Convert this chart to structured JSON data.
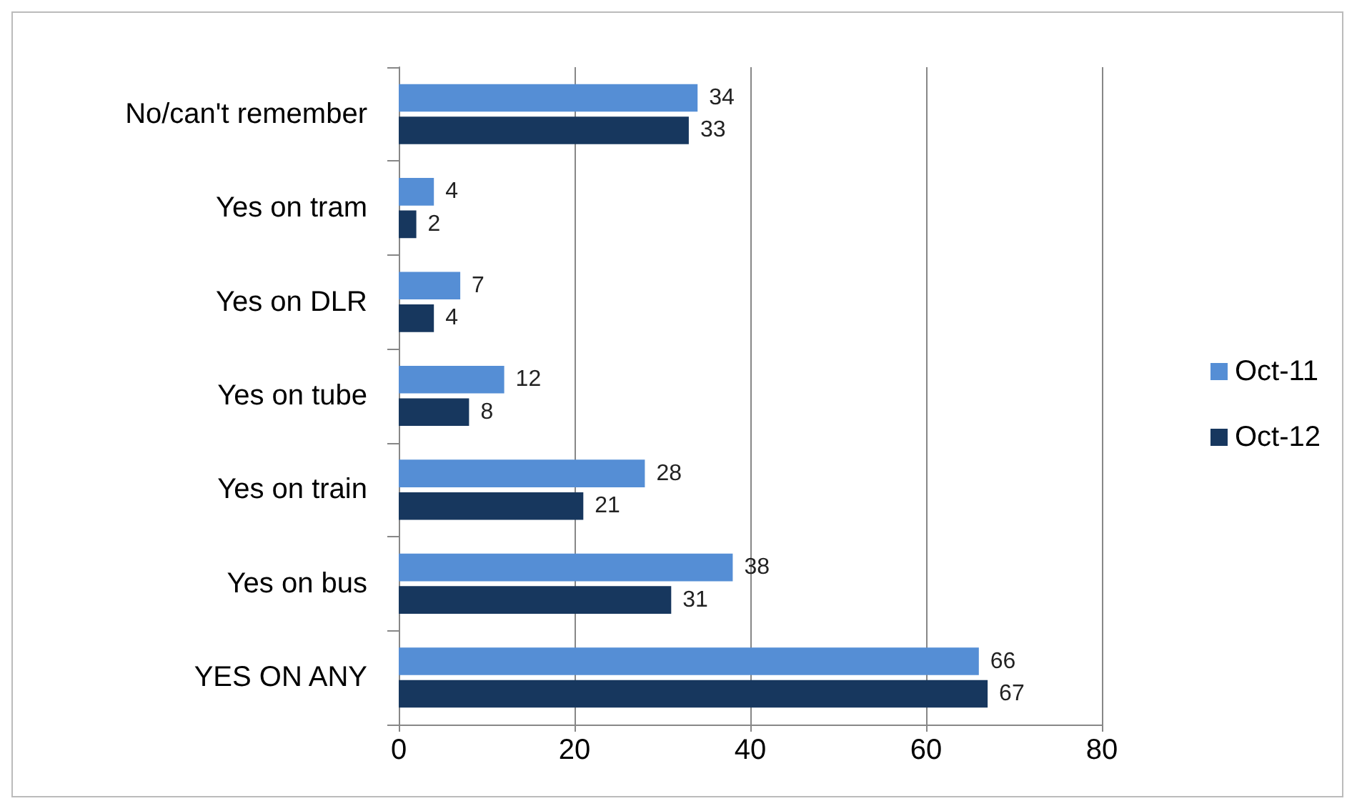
{
  "chart_data": {
    "type": "bar",
    "orientation": "horizontal",
    "categories": [
      "No/can't remember",
      "Yes on tram",
      "Yes on DLR",
      "Yes on tube",
      "Yes on train",
      "Yes on bus",
      "YES ON ANY"
    ],
    "series": [
      {
        "name": "Oct-11",
        "color": "#558ed5",
        "values": [
          34,
          4,
          7,
          12,
          28,
          38,
          66
        ]
      },
      {
        "name": "Oct-12",
        "color": "#17375e",
        "values": [
          33,
          2,
          4,
          8,
          21,
          31,
          67
        ]
      }
    ],
    "xlim": [
      0,
      80
    ],
    "xticks": [
      0,
      20,
      40,
      60,
      80
    ],
    "grid": "x",
    "legend": "right",
    "data_labels": true
  }
}
